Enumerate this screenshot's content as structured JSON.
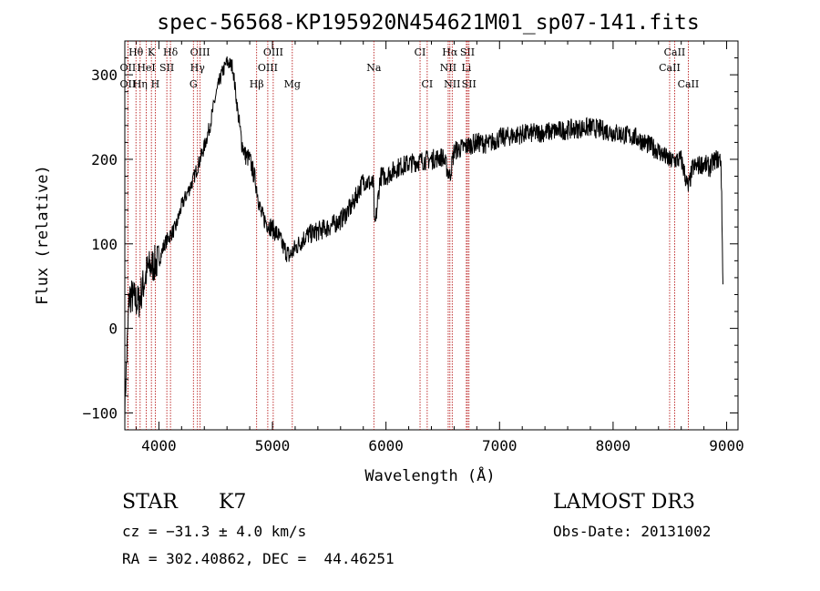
{
  "chart_data": {
    "type": "line",
    "title": "spec-56568-KP195920N454621M01_sp07-141.fits",
    "xlabel": "Wavelength (Å)",
    "ylabel": "Flux (relative)",
    "xlim": [
      3700,
      9100
    ],
    "ylim": [
      -120,
      340
    ],
    "x_ticks": [
      "4000",
      "5000",
      "6000",
      "7000",
      "8000",
      "9000"
    ],
    "y_ticks": [
      "−100",
      "0",
      "100",
      "200",
      "300"
    ],
    "grid": false,
    "series": [
      {
        "x": [
          3700,
          3740,
          3780,
          3820,
          3860,
          3900,
          3950,
          4000,
          4050,
          4100,
          4150,
          4200,
          4250,
          4300,
          4350,
          4400,
          4450,
          4500,
          4550,
          4600,
          4650,
          4700,
          4730,
          4760,
          4800,
          4850,
          4900,
          4950,
          5000,
          5050,
          5100,
          5150,
          5200,
          5300,
          5400,
          5500,
          5600,
          5700,
          5800,
          5890,
          5900,
          5950,
          6000,
          6100,
          6200,
          6300,
          6400,
          6500,
          6563,
          6600,
          6700,
          6800,
          6900,
          7000,
          7200,
          7400,
          7600,
          7800,
          8000,
          8200,
          8400,
          8500,
          8600,
          8662,
          8700,
          8800,
          8850,
          8900,
          8950,
          8970
        ],
        "y": [
          -90,
          40,
          35,
          30,
          50,
          70,
          75,
          80,
          100,
          110,
          120,
          145,
          160,
          175,
          195,
          215,
          240,
          275,
          300,
          315,
          310,
          250,
          220,
          205,
          200,
          175,
          135,
          125,
          118,
          110,
          95,
          85,
          95,
          110,
          115,
          120,
          128,
          145,
          175,
          170,
          115,
          180,
          180,
          190,
          195,
          198,
          200,
          203,
          180,
          210,
          215,
          220,
          218,
          225,
          230,
          232,
          235,
          238,
          232,
          226,
          210,
          198,
          200,
          165,
          190,
          195,
          190,
          200,
          200,
          35
        ]
      }
    ],
    "lines": [
      {
        "label": "Hθ",
        "wave": 3798,
        "row": 0
      },
      {
        "label": "K",
        "wave": 3934,
        "row": 0
      },
      {
        "label": "Hδ",
        "wave": 4102,
        "row": 0
      },
      {
        "label": "OIII",
        "wave": 4363,
        "row": 0
      },
      {
        "label": "OIII",
        "wave": 5007,
        "row": 0
      },
      {
        "label": "CI",
        "wave": 6300,
        "row": 0
      },
      {
        "label": "Hα",
        "wave": 6563,
        "row": 0
      },
      {
        "label": "SII",
        "wave": 6717,
        "row": 0
      },
      {
        "label": "CaII",
        "wave": 8542,
        "row": 0
      },
      {
        "label": "OII",
        "wave": 3727,
        "row": 1
      },
      {
        "label": "HeI",
        "wave": 3889,
        "row": 1
      },
      {
        "label": "SII",
        "wave": 4070,
        "row": 1
      },
      {
        "label": "Hγ",
        "wave": 4340,
        "row": 1
      },
      {
        "label": "OIII",
        "wave": 4959,
        "row": 1
      },
      {
        "label": "Na",
        "wave": 5893,
        "row": 1
      },
      {
        "label": "NII",
        "wave": 6548,
        "row": 1
      },
      {
        "label": "Li",
        "wave": 6708,
        "row": 1
      },
      {
        "label": "CaII",
        "wave": 8498,
        "row": 1
      },
      {
        "label": "OII",
        "wave": 3727,
        "row": 2
      },
      {
        "label": "Hη",
        "wave": 3835,
        "row": 2
      },
      {
        "label": "H",
        "wave": 3968,
        "row": 2
      },
      {
        "label": "G",
        "wave": 4304,
        "row": 2
      },
      {
        "label": "Hβ",
        "wave": 4861,
        "row": 2
      },
      {
        "label": "Mg",
        "wave": 5175,
        "row": 2
      },
      {
        "label": "CI",
        "wave": 6363,
        "row": 2
      },
      {
        "label": "NII",
        "wave": 6583,
        "row": 2
      },
      {
        "label": "SII",
        "wave": 6731,
        "row": 2
      },
      {
        "label": "CaII",
        "wave": 8662,
        "row": 2
      }
    ]
  },
  "footer": {
    "object_class": "STAR",
    "subclass": "K7",
    "survey": "LAMOST DR3",
    "cz": "cz = −31.3 ± 4.0 km/s",
    "obs_date": "Obs-Date: 20131002",
    "coords": "RA = 302.40862, DEC =  44.46251"
  }
}
